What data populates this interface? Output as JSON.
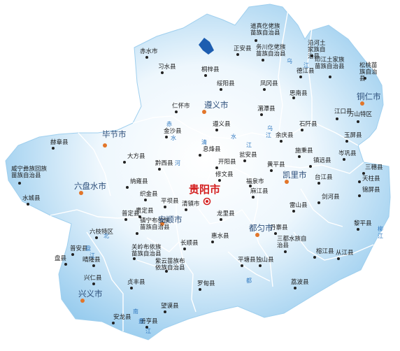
{
  "map": {
    "colors": {
      "land_inner": "#ffffff",
      "land_outer": "#8cc6ec",
      "border": "#ffffff",
      "capital": "#d42020",
      "prefecture_text": "#2c4e7a",
      "river_text": "#2f78c0",
      "lake": "#1d5db0"
    },
    "capital": {
      "name": "贵阳市"
    },
    "prefectures": [
      {
        "name": "遵义市"
      },
      {
        "name": "铜仁市"
      },
      {
        "name": "毕节市"
      },
      {
        "name": "六盘水市"
      },
      {
        "name": "安顺市"
      },
      {
        "name": "凯里市"
      },
      {
        "name": "都匀市"
      },
      {
        "name": "兴义市"
      }
    ],
    "counties": [
      {
        "name": "赤水市"
      },
      {
        "name": "习水县"
      },
      {
        "name": "桐梓县"
      },
      {
        "name": "正安县"
      },
      {
        "name": "道真仡佬族苗族自治县"
      },
      {
        "name": "务川仡佬族苗族自治县"
      },
      {
        "name": "沿河土家族自治县"
      },
      {
        "name": "德江县"
      },
      {
        "name": "印江土家族苗族自治县"
      },
      {
        "name": "松桃苗族自治县"
      },
      {
        "name": "绥阳县"
      },
      {
        "name": "凤冈县"
      },
      {
        "name": "思南县"
      },
      {
        "name": "仁怀市"
      },
      {
        "name": "湄潭县"
      },
      {
        "name": "江口县"
      },
      {
        "name": "万山特区"
      },
      {
        "name": "遵义县"
      },
      {
        "name": "石阡县"
      },
      {
        "name": "金沙县"
      },
      {
        "name": "余庆县"
      },
      {
        "name": "玉屏县"
      },
      {
        "name": "岑巩县"
      },
      {
        "name": "三穗县"
      },
      {
        "name": "赫章县"
      },
      {
        "name": "大方县"
      },
      {
        "name": "息烽县"
      },
      {
        "name": "开阳县"
      },
      {
        "name": "瓮安县"
      },
      {
        "name": "黄平县"
      },
      {
        "name": "施秉县"
      },
      {
        "name": "镇远县"
      },
      {
        "name": "天柱县"
      },
      {
        "name": "黔西县"
      },
      {
        "name": "修文县"
      },
      {
        "name": "福泉市"
      },
      {
        "name": "台江县"
      },
      {
        "name": "锦屏县"
      },
      {
        "name": "威宁彝族回族苗族自治县"
      },
      {
        "name": "纳雍县"
      },
      {
        "name": "织金县"
      },
      {
        "name": "水城县"
      },
      {
        "name": "平坝县"
      },
      {
        "name": "清镇市"
      },
      {
        "name": "贵定县"
      },
      {
        "name": "麻江县"
      },
      {
        "name": "剑河县"
      },
      {
        "name": "雷山县"
      },
      {
        "name": "龙里县"
      },
      {
        "name": "普定县"
      },
      {
        "name": "镇宁布依族苗族自治县"
      },
      {
        "name": "六枝特区"
      },
      {
        "name": "长顺县"
      },
      {
        "name": "惠水县"
      },
      {
        "name": "丹寨县"
      },
      {
        "name": "黎平县"
      },
      {
        "name": "关岭布依族苗族自治县"
      },
      {
        "name": "晴隆县"
      },
      {
        "name": "普安县"
      },
      {
        "name": "盘县"
      },
      {
        "name": "三都水族自治县"
      },
      {
        "name": "从江县"
      },
      {
        "name": "榕江县"
      },
      {
        "name": "紫云苗族布依族自治县"
      },
      {
        "name": "平塘县"
      },
      {
        "name": "独山县"
      },
      {
        "name": "兴仁县"
      },
      {
        "name": "贞丰县"
      },
      {
        "name": "罗甸县"
      },
      {
        "name": "荔波县"
      },
      {
        "name": "安龙县"
      },
      {
        "name": "望谟县"
      },
      {
        "name": "册亨县"
      }
    ],
    "rivers": [
      {
        "name": "乌"
      },
      {
        "name": "江"
      },
      {
        "name": "赤"
      },
      {
        "name": "水"
      },
      {
        "name": "河"
      },
      {
        "name": "清"
      },
      {
        "name": "水"
      },
      {
        "name": "江"
      },
      {
        "name": "乌"
      },
      {
        "name": "江"
      },
      {
        "name": "北"
      },
      {
        "name": "盘"
      },
      {
        "name": "江"
      },
      {
        "name": "南"
      },
      {
        "name": "盘"
      },
      {
        "name": "江"
      },
      {
        "name": "都"
      },
      {
        "name": "柳"
      },
      {
        "name": "江"
      }
    ]
  }
}
